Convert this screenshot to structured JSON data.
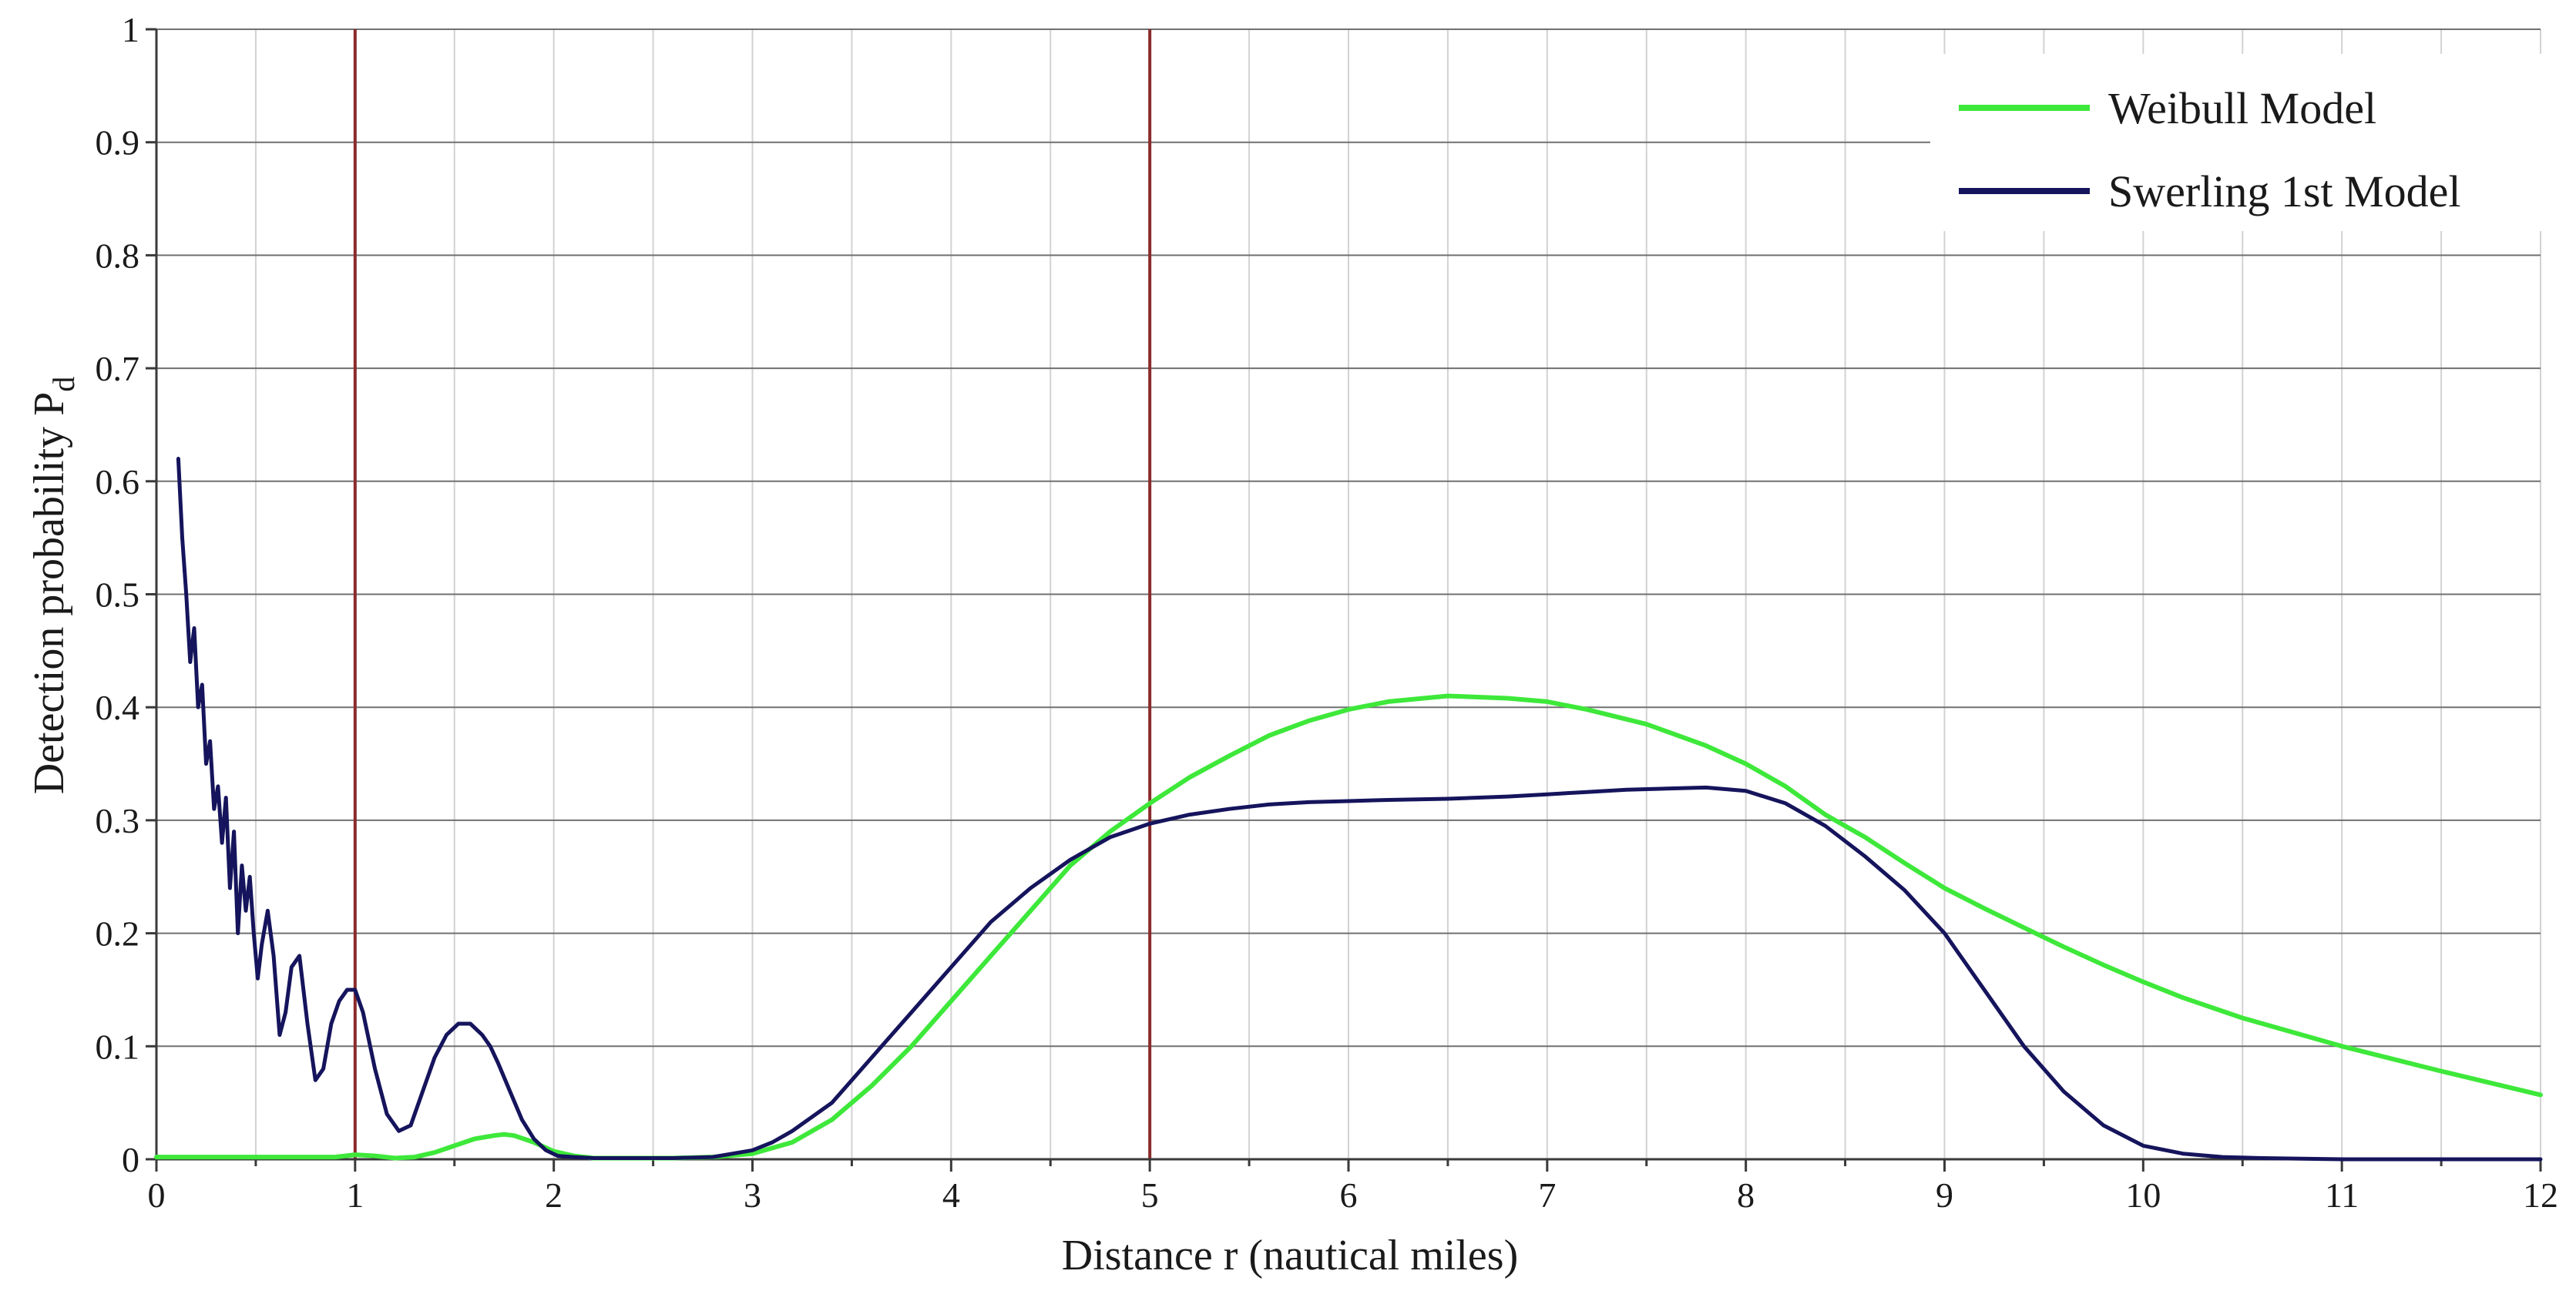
{
  "chart_data": {
    "type": "line",
    "xlabel": "Distance r (nautical miles)",
    "ylabel": "Detection probability P",
    "ylabel_subscript": "d",
    "xlim": [
      0,
      12
    ],
    "ylim": [
      0,
      1
    ],
    "x_ticks": [
      0,
      1,
      2,
      3,
      4,
      5,
      6,
      7,
      8,
      9,
      10,
      11,
      12
    ],
    "y_ticks": [
      0,
      0.1,
      0.2,
      0.3,
      0.4,
      0.5,
      0.6,
      0.7,
      0.8,
      0.9,
      1
    ],
    "grid": "on",
    "legend_position": "top-right",
    "reference_lines": {
      "axis": "x",
      "values": [
        1,
        5
      ],
      "color": "#8b2a2a"
    },
    "series": [
      {
        "name": "Weibull Model",
        "color": "#3ee83a",
        "x": [
          0,
          0.1,
          0.2,
          0.3,
          0.4,
          0.5,
          0.6,
          0.7,
          0.8,
          0.9,
          1.0,
          1.1,
          1.2,
          1.3,
          1.4,
          1.5,
          1.6,
          1.7,
          1.75,
          1.8,
          1.9,
          2.0,
          2.1,
          2.2,
          2.4,
          2.6,
          2.8,
          3.0,
          3.2,
          3.4,
          3.6,
          3.8,
          4.0,
          4.2,
          4.4,
          4.6,
          4.8,
          5.0,
          5.2,
          5.4,
          5.6,
          5.8,
          6.0,
          6.2,
          6.5,
          6.8,
          7.0,
          7.2,
          7.5,
          7.8,
          8.0,
          8.2,
          8.4,
          8.6,
          8.8,
          9.0,
          9.2,
          9.4,
          9.6,
          9.8,
          10.0,
          10.2,
          10.5,
          11.0,
          11.5,
          12.0
        ],
        "y": [
          0.002,
          0.002,
          0.002,
          0.002,
          0.002,
          0.002,
          0.002,
          0.002,
          0.002,
          0.002,
          0.004,
          0.003,
          0.001,
          0.002,
          0.006,
          0.012,
          0.018,
          0.021,
          0.022,
          0.021,
          0.015,
          0.007,
          0.003,
          0.001,
          0.001,
          0.001,
          0.002,
          0.005,
          0.015,
          0.035,
          0.065,
          0.1,
          0.14,
          0.18,
          0.22,
          0.26,
          0.29,
          0.315,
          0.338,
          0.357,
          0.375,
          0.388,
          0.398,
          0.405,
          0.41,
          0.408,
          0.405,
          0.398,
          0.385,
          0.366,
          0.35,
          0.33,
          0.305,
          0.285,
          0.262,
          0.24,
          0.222,
          0.205,
          0.188,
          0.172,
          0.157,
          0.143,
          0.125,
          0.1,
          0.078,
          0.057
        ]
      },
      {
        "name": "Swerling 1st Model",
        "color": "#15145c",
        "x": [
          0.11,
          0.13,
          0.15,
          0.17,
          0.19,
          0.21,
          0.23,
          0.25,
          0.27,
          0.29,
          0.31,
          0.33,
          0.35,
          0.37,
          0.39,
          0.41,
          0.43,
          0.45,
          0.47,
          0.49,
          0.51,
          0.53,
          0.56,
          0.59,
          0.62,
          0.65,
          0.68,
          0.72,
          0.76,
          0.8,
          0.84,
          0.88,
          0.92,
          0.96,
          1.0,
          1.04,
          1.1,
          1.16,
          1.22,
          1.28,
          1.34,
          1.4,
          1.46,
          1.52,
          1.58,
          1.64,
          1.68,
          1.72,
          1.78,
          1.84,
          1.9,
          1.96,
          2.02,
          2.1,
          2.2,
          2.3,
          2.4,
          2.6,
          2.8,
          3.0,
          3.1,
          3.2,
          3.4,
          3.6,
          3.8,
          4.0,
          4.2,
          4.4,
          4.6,
          4.8,
          5.0,
          5.2,
          5.4,
          5.6,
          5.8,
          6.0,
          6.2,
          6.5,
          6.8,
          7.0,
          7.2,
          7.4,
          7.6,
          7.8,
          8.0,
          8.2,
          8.4,
          8.6,
          8.8,
          9.0,
          9.2,
          9.4,
          9.6,
          9.8,
          10.0,
          10.2,
          10.4,
          10.6,
          11.0,
          11.5,
          12.0
        ],
        "y": [
          0.62,
          0.55,
          0.5,
          0.44,
          0.47,
          0.4,
          0.42,
          0.35,
          0.37,
          0.31,
          0.33,
          0.28,
          0.32,
          0.24,
          0.29,
          0.2,
          0.26,
          0.22,
          0.25,
          0.2,
          0.16,
          0.19,
          0.22,
          0.18,
          0.11,
          0.13,
          0.17,
          0.18,
          0.12,
          0.07,
          0.08,
          0.12,
          0.14,
          0.15,
          0.15,
          0.13,
          0.08,
          0.04,
          0.025,
          0.03,
          0.06,
          0.09,
          0.11,
          0.12,
          0.12,
          0.11,
          0.1,
          0.085,
          0.06,
          0.035,
          0.018,
          0.008,
          0.003,
          0.002,
          0.001,
          0.001,
          0.001,
          0.001,
          0.002,
          0.008,
          0.015,
          0.025,
          0.05,
          0.09,
          0.13,
          0.17,
          0.21,
          0.24,
          0.265,
          0.285,
          0.297,
          0.305,
          0.31,
          0.314,
          0.316,
          0.317,
          0.318,
          0.319,
          0.321,
          0.323,
          0.325,
          0.327,
          0.328,
          0.329,
          0.326,
          0.315,
          0.295,
          0.268,
          0.238,
          0.2,
          0.15,
          0.1,
          0.06,
          0.03,
          0.012,
          0.005,
          0.002,
          0.001,
          0.0,
          0.0,
          0.0
        ]
      }
    ]
  }
}
